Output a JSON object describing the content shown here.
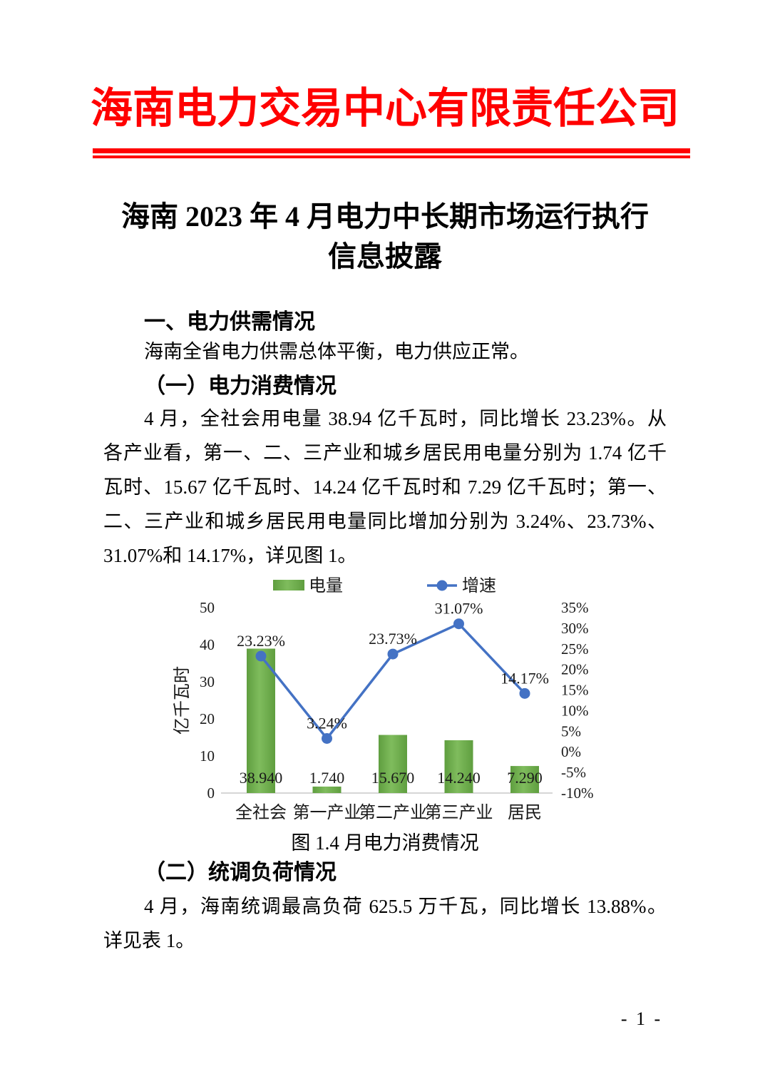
{
  "header": {
    "company": "海南电力交易中心有限责任公司"
  },
  "title": {
    "line1": "海南 2023 年 4 月电力中长期市场运行执行",
    "line2": "信息披露"
  },
  "body": {
    "h1": "一、电力供需情况",
    "p1": "海南全省电力供需总体平衡，电力供应正常。",
    "h2": "（一）电力消费情况",
    "p2_lines": [
      "4 月，全社会用电量 38.94 亿千瓦时，同比增长 23.23%。从",
      "各产业看，第一、二、三产业和城乡居民用电量分别为 1.74 亿千",
      "瓦时、15.67 亿千瓦时、14.24 亿千瓦时和 7.29 亿千瓦时；第一、",
      "二、三产业和城乡居民用电量同比增加分别为 3.24%、23.73%、",
      "31.07%和 14.17%，详见图 1。"
    ],
    "fig1_caption": "图 1.4 月电力消费情况",
    "h3": "（二）统调负荷情况",
    "p3_lines": [
      "4 月，海南统调最高负荷 625.5 万千瓦，同比增长 13.88%。",
      "详见表 1。"
    ]
  },
  "footer": {
    "page_number": "- 1 -"
  },
  "colors": {
    "accent_red": "#ff0000",
    "bar_green": "#69aa48",
    "line_blue": "#4472c4",
    "axis_gray": "#d6d6d6"
  },
  "chart_data": {
    "type": "bar",
    "subtype": "bar-line-combo",
    "title": "图 1.4 月电力消费情况",
    "categories": [
      "全社会",
      "第一产业",
      "第二产业",
      "第三产业",
      "居民"
    ],
    "series": [
      {
        "name": "电量",
        "chart": "bar",
        "axis": "left",
        "values": [
          38.94,
          1.74,
          15.67,
          14.24,
          7.29
        ],
        "data_labels": [
          "38.940",
          "1.740",
          "15.670",
          "14.240",
          "7.290"
        ],
        "color": "#69aa48",
        "color_light": "#7fbc5d",
        "color_dark": "#5f9e3f"
      },
      {
        "name": "增速",
        "chart": "line",
        "axis": "right",
        "values": [
          23.23,
          3.24,
          23.73,
          31.07,
          14.17
        ],
        "data_labels": [
          "23.23%",
          "3.24%",
          "23.73%",
          "31.07%",
          "14.17%"
        ],
        "color": "#4472c4"
      }
    ],
    "left_axis": {
      "title": "亿千瓦时",
      "min": 0,
      "max": 50,
      "step": 10,
      "ticks": [
        "0",
        "10",
        "20",
        "30",
        "40",
        "50"
      ]
    },
    "right_axis": {
      "min": -10,
      "max": 35,
      "step": 5,
      "ticks": [
        "-10%",
        "-5%",
        "0%",
        "5%",
        "10%",
        "15%",
        "20%",
        "25%",
        "30%",
        "35%"
      ]
    },
    "legend_position": "top",
    "grid": false
  }
}
